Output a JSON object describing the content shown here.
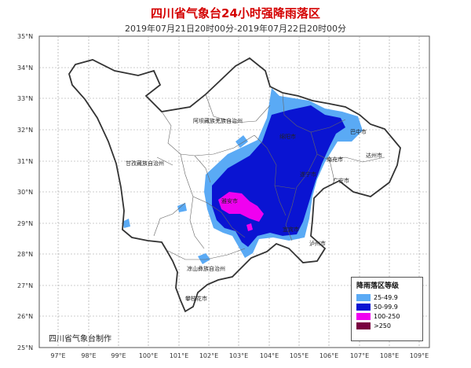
{
  "title": "四川省气象台24小时强降雨落区",
  "subtitle": "2019年07月21日20时00分-2019年07月22日20时00分",
  "credit": "四川省气象台制作",
  "lat_ticks": [
    "35°N",
    "34°N",
    "33°N",
    "32°N",
    "31°N",
    "30°N",
    "29°N",
    "28°N",
    "27°N",
    "26°N",
    "25°N"
  ],
  "lon_ticks": [
    "97°E",
    "98°E",
    "99°E",
    "100°E",
    "101°E",
    "102°E",
    "103°E",
    "104°E",
    "105°E",
    "106°E",
    "107°E",
    "108°E",
    "109°E"
  ],
  "places": {
    "aba": "阿坝藏族羌族自治州",
    "ganzi": "甘孜藏族自治州",
    "liangshan": "凉山彝族自治州",
    "panzhihua": "攀枝花市",
    "bazhong": "巴中市",
    "dazhou": "达州市",
    "nanchong": "南充市",
    "suining": "遂宁市",
    "guangan": "广安市",
    "yaan": "雅安市",
    "yibin": "宜宾市",
    "luzhou": "泸州市",
    "mianyang": "绵阳市"
  },
  "legend": {
    "title": "降雨落区等级",
    "items": [
      {
        "label": "25-49.9",
        "color": "#5aaaf5"
      },
      {
        "label": "50-99.9",
        "color": "#0a14d2"
      },
      {
        "label": "100-250",
        "color": "#f000f0"
      },
      {
        "label": ">250",
        "color": "#7a0040"
      }
    ]
  }
}
